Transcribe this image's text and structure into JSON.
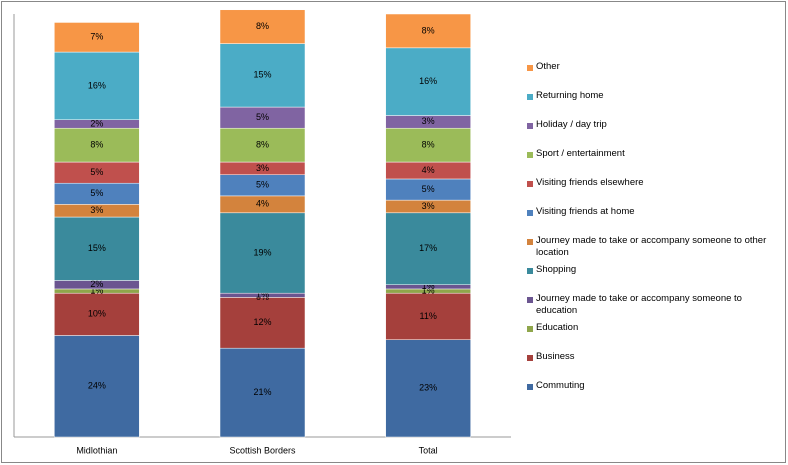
{
  "chart_data": {
    "type": "stacked_bar",
    "categories": [
      "Midlothian",
      "Scottish Borders",
      "Total"
    ],
    "ylim": [
      0,
      100
    ],
    "series": [
      {
        "name": "Commuting",
        "color": "#3f6aa1",
        "values": [
          24,
          21,
          23
        ],
        "value_labels": [
          "24%",
          "21%",
          "23%"
        ]
      },
      {
        "name": "Business",
        "color": "#a5403c",
        "values": [
          10,
          12,
          11
        ],
        "value_labels": [
          "10%",
          "12%",
          "11%"
        ]
      },
      {
        "name": "Education",
        "color": "#8fa64b",
        "values": [
          1,
          0,
          1
        ],
        "value_labels": [
          "1%",
          "0%",
          "1%"
        ]
      },
      {
        "name": "Journey made to take or accompany someone to education",
        "color": "#6b5590",
        "values": [
          2,
          1,
          1
        ],
        "value_labels": [
          "2%",
          "1%",
          "1%"
        ]
      },
      {
        "name": "Shopping",
        "color": "#3a8a9c",
        "values": [
          15,
          19,
          17
        ],
        "value_labels": [
          "15%",
          "19%",
          "17%"
        ]
      },
      {
        "name": "Journey made to take or accompany someone to other location",
        "color": "#d3833d",
        "values": [
          3,
          4,
          3
        ],
        "value_labels": [
          "3%",
          "4%",
          "3%"
        ]
      },
      {
        "name": "Visiting friends at home",
        "color": "#4f81bd",
        "values": [
          5,
          5,
          5
        ],
        "value_labels": [
          "5%",
          "5%",
          "5%"
        ]
      },
      {
        "name": "Visiting friends elsewhere",
        "color": "#c0504d",
        "values": [
          5,
          3,
          4
        ],
        "value_labels": [
          "5%",
          "3%",
          "4%"
        ]
      },
      {
        "name": "Sport / entertainment",
        "color": "#9bbb59",
        "values": [
          8,
          8,
          8
        ],
        "value_labels": [
          "8%",
          "8%",
          "8%"
        ]
      },
      {
        "name": "Holiday / day trip",
        "color": "#8064a2",
        "values": [
          2,
          5,
          3
        ],
        "value_labels": [
          "2%",
          "5%",
          "3%"
        ]
      },
      {
        "name": "Returning home",
        "color": "#4bacc6",
        "values": [
          16,
          15,
          16
        ],
        "value_labels": [
          "16%",
          "15%",
          "16%"
        ]
      },
      {
        "name": "Other",
        "color": "#f79646",
        "values": [
          7,
          8,
          8
        ],
        "value_labels": [
          "7%",
          "8%",
          "8%"
        ]
      }
    ]
  }
}
